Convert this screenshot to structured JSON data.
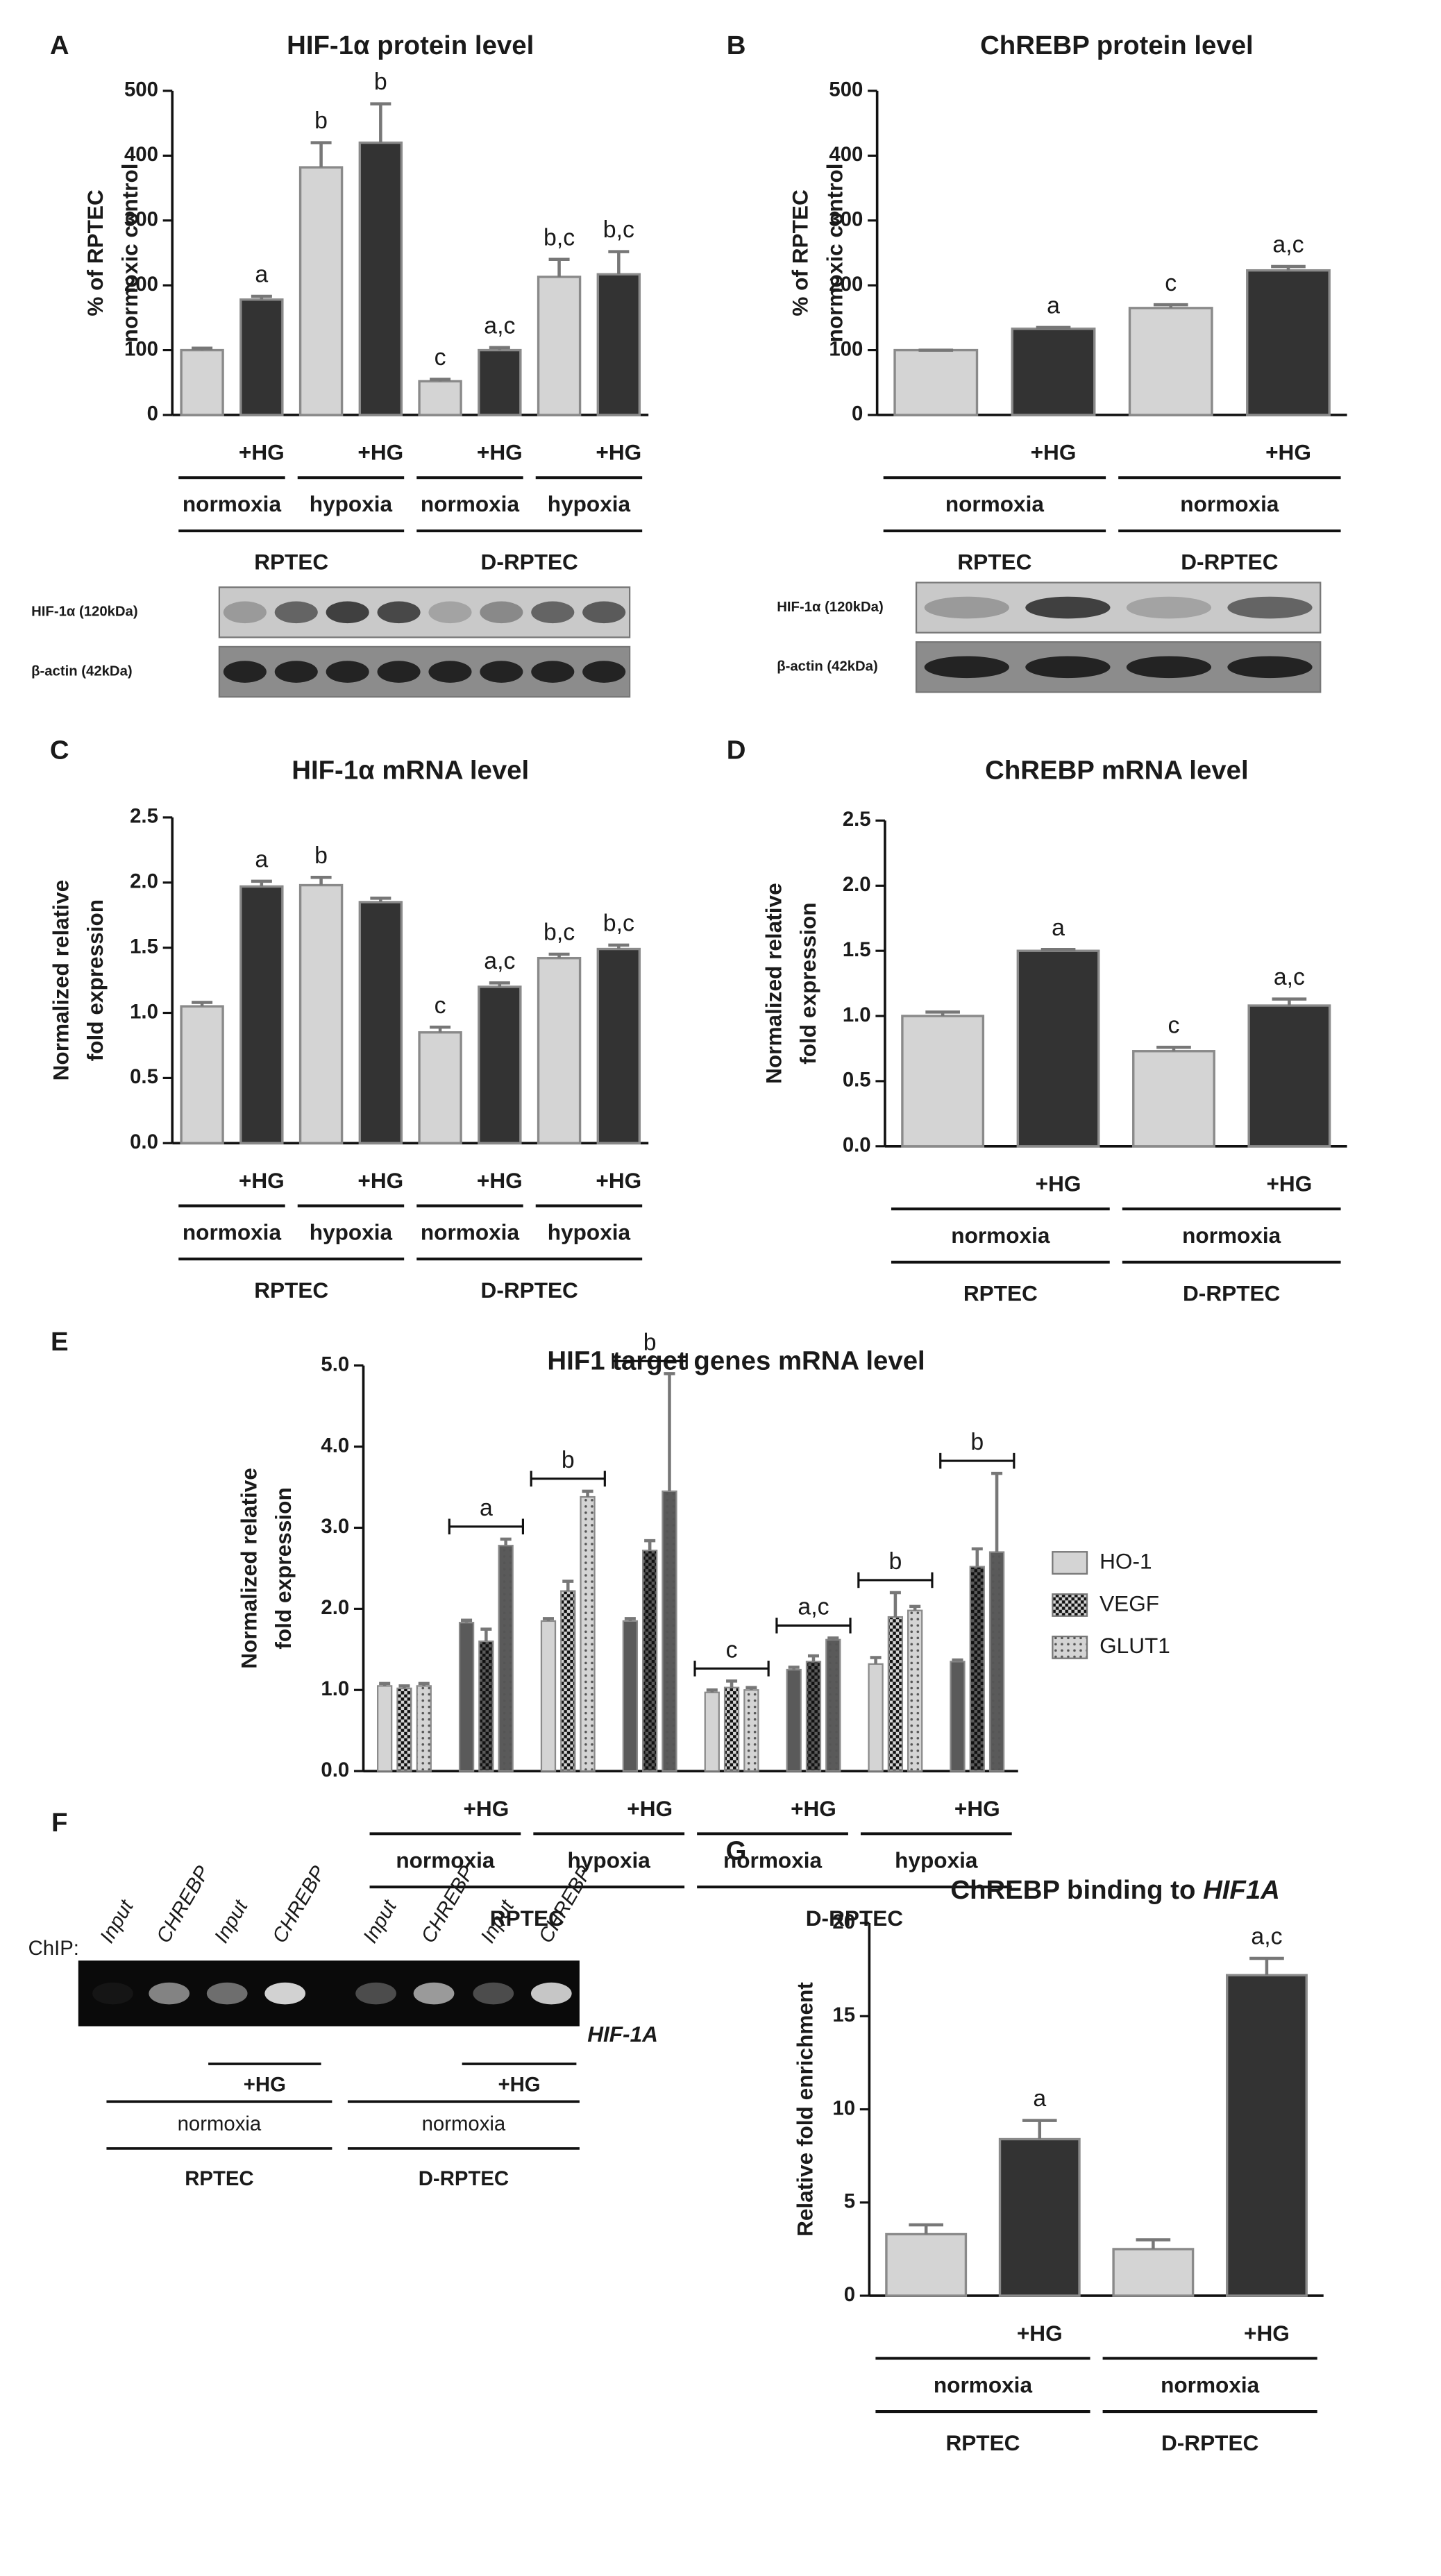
{
  "chart_data": [
    {
      "type": "bar",
      "panel": "A",
      "title": "HIF-1α protein level",
      "ylabel": [
        "% of RPTEC",
        "normoxic control"
      ],
      "categories": [
        null,
        "+HG",
        null,
        "+HG",
        null,
        "+HG",
        null,
        "+HG"
      ],
      "values": [
        100,
        178,
        382,
        420,
        52,
        100,
        213,
        217
      ],
      "errors": [
        3,
        5,
        38,
        60,
        3,
        4,
        27,
        35
      ],
      "annotations": [
        null,
        "a",
        "b",
        "b",
        "c",
        "a,c",
        "b,c",
        "b,c"
      ],
      "bar_colors": [
        "#d4d4d4",
        "#333333",
        "#d4d4d4",
        "#333333",
        "#d4d4d4",
        "#333333",
        "#d4d4d4",
        "#333333"
      ],
      "ylim": [
        0,
        500
      ],
      "yticks": [
        0,
        100,
        200,
        300,
        400,
        500
      ],
      "conditions": [
        "normoxia",
        "hypoxia",
        "normoxia",
        "hypoxia"
      ],
      "cell_lines": [
        "RPTEC",
        "D-RPTEC"
      ],
      "blot_labels": [
        "HIF-1α (120kDa)",
        "β-actin (42kDa)"
      ]
    },
    {
      "type": "bar",
      "panel": "B",
      "title": "ChREBP protein level",
      "ylabel": [
        "% of RPTEC",
        "normoxic control"
      ],
      "categories": [
        null,
        "+HG",
        null,
        "+HG"
      ],
      "values": [
        100,
        133,
        165,
        223
      ],
      "errors": [
        0,
        2,
        5,
        6
      ],
      "annotations": [
        null,
        "a",
        "c",
        "a,c"
      ],
      "bar_colors": [
        "#d4d4d4",
        "#333333",
        "#d4d4d4",
        "#333333"
      ],
      "ylim": [
        0,
        500
      ],
      "yticks": [
        0,
        100,
        200,
        300,
        400,
        500
      ],
      "conditions": [
        "normoxia",
        "normoxia"
      ],
      "cell_lines": [
        "RPTEC",
        "D-RPTEC"
      ],
      "blot_labels": [
        "HIF-1α (120kDa)",
        "β-actin (42kDa)"
      ]
    },
    {
      "type": "bar",
      "panel": "C",
      "title": "HIF-1α mRNA level",
      "ylabel": [
        "Normalized relative",
        "fold expression"
      ],
      "categories": [
        null,
        "+HG",
        null,
        "+HG",
        null,
        "+HG",
        null,
        "+HG"
      ],
      "values": [
        1.05,
        1.97,
        1.98,
        1.85,
        0.85,
        1.2,
        1.42,
        1.49
      ],
      "errors": [
        0.03,
        0.04,
        0.06,
        0.03,
        0.04,
        0.03,
        0.03,
        0.03
      ],
      "annotations": [
        null,
        "a",
        "b",
        null,
        "c",
        "a,c",
        "b,c",
        "b,c"
      ],
      "bar_colors": [
        "#d4d4d4",
        "#333333",
        "#d4d4d4",
        "#333333",
        "#d4d4d4",
        "#333333",
        "#d4d4d4",
        "#333333"
      ],
      "ylim": [
        0,
        2.5
      ],
      "yticks": [
        {
          "value": 0,
          "label": "0.0"
        },
        0.5,
        {
          "value": 1,
          "label": "1.0"
        },
        1.5,
        {
          "value": 2,
          "label": "2.0"
        },
        2.5
      ],
      "conditions": [
        "normoxia",
        "hypoxia",
        "normoxia",
        "hypoxia"
      ],
      "cell_lines": [
        "RPTEC",
        "D-RPTEC"
      ]
    },
    {
      "type": "bar",
      "panel": "D",
      "title": "ChREBP mRNA level",
      "ylabel": [
        "Normalized relative",
        "fold expression"
      ],
      "categories": [
        null,
        "+HG",
        null,
        "+HG"
      ],
      "values": [
        1.0,
        1.5,
        0.73,
        1.08
      ],
      "errors": [
        0.03,
        0.01,
        0.03,
        0.05
      ],
      "annotations": [
        null,
        "a",
        "c",
        "a,c"
      ],
      "bar_colors": [
        "#d4d4d4",
        "#333333",
        "#d4d4d4",
        "#333333"
      ],
      "ylim": [
        0,
        2.5
      ],
      "yticks": [
        {
          "value": 0,
          "label": "0.0"
        },
        0.5,
        {
          "value": 1,
          "label": "1.0"
        },
        1.5,
        {
          "value": 2,
          "label": "2.0"
        },
        2.5
      ],
      "conditions": [
        "normoxia",
        "normoxia"
      ],
      "cell_lines": [
        "RPTEC",
        "D-RPTEC"
      ]
    },
    {
      "type": "grouped_bar",
      "panel": "E",
      "title": "HIF1 target genes mRNA level",
      "ylabel": [
        "Normalized relative",
        "fold expression"
      ],
      "categories": [
        null,
        "+HG",
        null,
        "+HG",
        null,
        "+HG",
        null,
        "+HG"
      ],
      "series": [
        {
          "name": "HO-1",
          "color": "#d4d4d4",
          "hg_color": "#5a5a5a",
          "pattern": "solid",
          "values": [
            1.05,
            1.83,
            1.85,
            1.85,
            0.97,
            1.25,
            1.32,
            1.35
          ],
          "errors": [
            0.03,
            0.03,
            0.03,
            0.03,
            0.03,
            0.03,
            0.08,
            0.02
          ]
        },
        {
          "name": "VEGF",
          "color": "#d4d4d4",
          "hg_color": "#5a5a5a",
          "pattern": "checker",
          "values": [
            1.02,
            1.6,
            2.22,
            2.72,
            1.03,
            1.35,
            1.9,
            2.52
          ],
          "errors": [
            0.03,
            0.15,
            0.12,
            0.12,
            0.08,
            0.07,
            0.3,
            0.22
          ]
        },
        {
          "name": "GLUT1",
          "color": "#d4d4d4",
          "hg_color": "#5a5a5a",
          "pattern": "dots",
          "values": [
            1.05,
            2.78,
            3.38,
            3.45,
            1.0,
            1.62,
            1.98,
            2.7
          ],
          "errors": [
            0.03,
            0.08,
            0.07,
            1.45,
            0.03,
            0.02,
            0.05,
            0.97
          ]
        }
      ],
      "annotations": [
        null,
        "a",
        "b",
        "b",
        "c",
        "a,c",
        "b",
        "b"
      ],
      "ylim": [
        0,
        5
      ],
      "yticks": [
        {
          "value": 0,
          "label": "0.0"
        },
        {
          "value": 1,
          "label": "1.0"
        },
        {
          "value": 2,
          "label": "2.0"
        },
        {
          "value": 3,
          "label": "3.0"
        },
        {
          "value": 4,
          "label": "4.0"
        },
        {
          "value": 5,
          "label": "5.0"
        }
      ],
      "conditions": [
        "normoxia",
        "hypoxia",
        "normoxia",
        "hypoxia"
      ],
      "cell_lines": [
        "RPTEC",
        "D-RPTEC"
      ]
    },
    {
      "type": "bar",
      "panel": "G",
      "title": "ChREBP binding to",
      "title_italic": "HIF1A",
      "ylabel": [
        "Relative fold enrichment"
      ],
      "categories": [
        null,
        "+HG",
        null,
        "+HG"
      ],
      "values": [
        3.3,
        8.4,
        2.5,
        17.2
      ],
      "errors": [
        0.5,
        1.0,
        0.5,
        0.9
      ],
      "annotations": [
        null,
        "a",
        null,
        "a,c"
      ],
      "bar_colors": [
        "#d4d4d4",
        "#333333",
        "#d4d4d4",
        "#333333"
      ],
      "ylim": [
        0,
        20
      ],
      "yticks": [
        0,
        5,
        10,
        15,
        20
      ],
      "conditions": [
        "normoxia",
        "normoxia"
      ],
      "cell_lines": [
        "RPTEC",
        "D-RPTEC"
      ]
    }
  ],
  "gel": {
    "panel": "F",
    "chip_label": "ChIP:",
    "lanes": [
      "Input",
      "CHREBP",
      "Input",
      "CHREBP",
      "Input",
      "CHREBP",
      "Input",
      "CHREBP"
    ],
    "gene": "HIF-1A",
    "treatment": "+HG",
    "conditions": [
      "normoxia",
      "normoxia"
    ],
    "cell_lines": [
      "RPTEC",
      "D-RPTEC"
    ]
  }
}
